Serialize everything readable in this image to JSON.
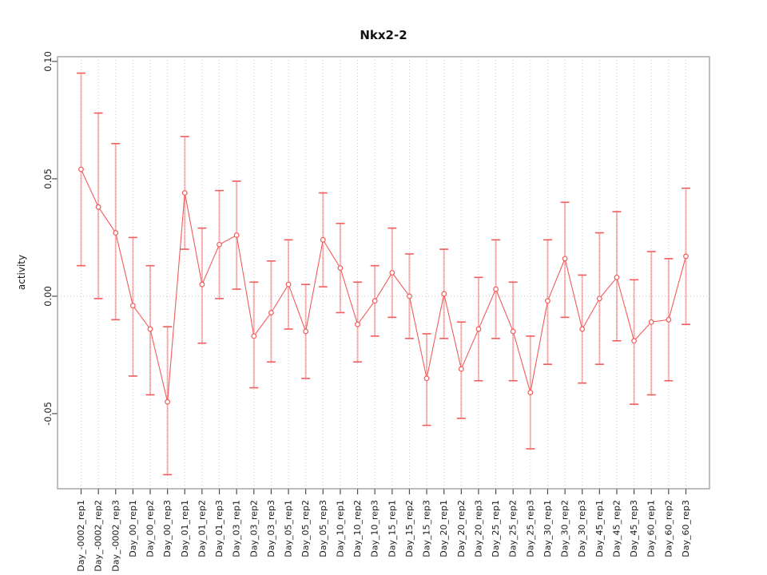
{
  "chart_data": {
    "type": "line",
    "title": "Nkx2-2",
    "ylabel": "activity",
    "xlabel": "",
    "legend": "none",
    "grid": "vertical dotted gridline at every category; dotted horizontal line at y=0",
    "ylim": [
      -0.082,
      0.102
    ],
    "yticks": [
      0.1,
      0.05,
      0.0,
      -0.05
    ],
    "ytick_labels": [
      "0.10",
      "0.05",
      "0.00",
      "-0.05"
    ],
    "zero_line": 0.0,
    "categories": [
      "Day_-0002_rep1",
      "Day_-0002_rep2",
      "Day_-0002_rep3",
      "Day_00_rep1",
      "Day_00_rep2",
      "Day_00_rep3",
      "Day_01_rep1",
      "Day_01_rep2",
      "Day_01_rep3",
      "Day_03_rep1",
      "Day_03_rep2",
      "Day_03_rep3",
      "Day_05_rep1",
      "Day_05_rep2",
      "Day_05_rep3",
      "Day_10_rep1",
      "Day_10_rep2",
      "Day_10_rep3",
      "Day_15_rep1",
      "Day_15_rep2",
      "Day_15_rep3",
      "Day_20_rep1",
      "Day_20_rep2",
      "Day_20_rep3",
      "Day_25_rep1",
      "Day_25_rep2",
      "Day_25_rep3",
      "Day_30_rep1",
      "Day_30_rep2",
      "Day_30_rep3",
      "Day_45_rep1",
      "Day_45_rep2",
      "Day_45_rep3",
      "Day_60_rep1",
      "Day_60_rep2",
      "Day_60_rep3"
    ],
    "series": [
      {
        "name": "activity",
        "marker": "open-circle",
        "values": [
          0.054,
          0.038,
          0.027,
          -0.004,
          -0.014,
          -0.045,
          0.044,
          0.005,
          0.022,
          0.026,
          -0.017,
          -0.007,
          0.005,
          -0.015,
          0.024,
          0.012,
          -0.012,
          -0.002,
          0.01,
          0.0,
          -0.035,
          0.001,
          -0.031,
          -0.014,
          0.003,
          -0.015,
          -0.041,
          -0.002,
          0.016,
          -0.014,
          -0.001,
          0.008,
          -0.019,
          -0.011,
          -0.01,
          0.017
        ],
        "ci_low": [
          0.013,
          -0.001,
          -0.01,
          -0.034,
          -0.042,
          -0.076,
          0.02,
          -0.02,
          -0.001,
          0.003,
          -0.039,
          -0.028,
          -0.014,
          -0.035,
          0.004,
          -0.007,
          -0.028,
          -0.017,
          -0.009,
          -0.018,
          -0.055,
          -0.018,
          -0.052,
          -0.036,
          -0.018,
          -0.036,
          -0.065,
          -0.029,
          -0.009,
          -0.037,
          -0.029,
          -0.019,
          -0.046,
          -0.042,
          -0.036,
          -0.012
        ],
        "ci_high": [
          0.095,
          0.078,
          0.065,
          0.025,
          0.013,
          -0.013,
          0.068,
          0.029,
          0.045,
          0.049,
          0.006,
          0.015,
          0.024,
          0.005,
          0.044,
          0.031,
          0.006,
          0.013,
          0.029,
          0.018,
          -0.016,
          0.02,
          -0.011,
          0.008,
          0.024,
          0.006,
          -0.017,
          0.024,
          0.04,
          0.009,
          0.027,
          0.036,
          0.007,
          0.019,
          0.016,
          0.046
        ]
      }
    ],
    "colors": {
      "series": "#f25c5c",
      "stem": "rgba(242,92,92,0.45)",
      "grid": "#cccccc",
      "zero": "#c4c4c4",
      "box": "#9a9a9a",
      "tick": "#4d4d4d",
      "text": "#1a1a1a"
    }
  }
}
